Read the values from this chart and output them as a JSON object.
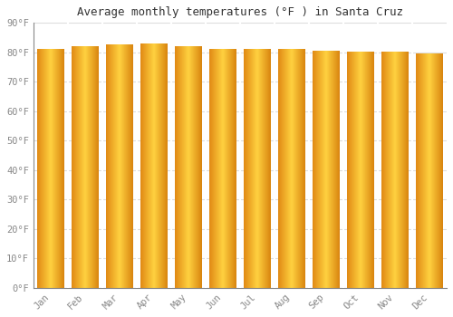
{
  "title": "Average monthly temperatures (°F ) in Santa Cruz",
  "months": [
    "Jan",
    "Feb",
    "Mar",
    "Apr",
    "May",
    "Jun",
    "Jul",
    "Aug",
    "Sep",
    "Oct",
    "Nov",
    "Dec"
  ],
  "values": [
    81,
    82,
    82.5,
    83,
    82,
    81,
    81,
    81,
    80.5,
    80,
    80,
    79.5
  ],
  "bar_color_left": "#F5A623",
  "bar_color_center": "#FFD060",
  "bar_color_right": "#E08C00",
  "background_color": "#FFFFFF",
  "grid_color": "#DDDDDD",
  "ylim": [
    0,
    90
  ],
  "yticks": [
    0,
    10,
    20,
    30,
    40,
    50,
    60,
    70,
    80,
    90
  ],
  "title_fontsize": 9,
  "tick_fontsize": 7.5,
  "bar_width": 0.78
}
